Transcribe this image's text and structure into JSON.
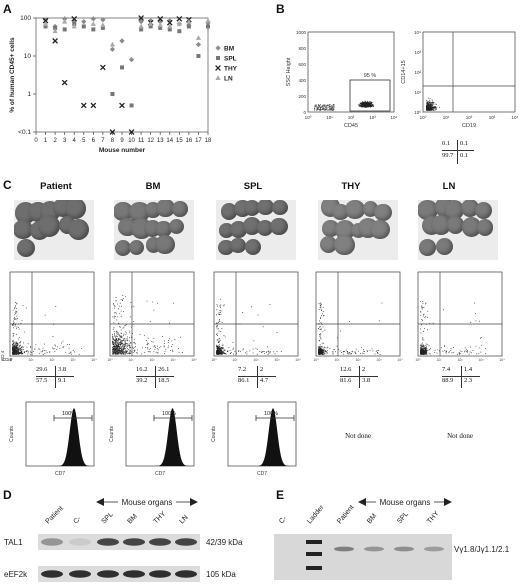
{
  "panels": {
    "A": "A",
    "B": "B",
    "C": "C",
    "D": "D",
    "E": "E"
  },
  "chart_data": {
    "type": "scatter",
    "xlabel": "Mouse number",
    "ylabel": "% of human CD45+ cells",
    "x_ticks": [
      "0",
      "1",
      "2",
      "3",
      "4",
      "5",
      "6",
      "7",
      "8",
      "9",
      "10",
      "11",
      "12",
      "13",
      "14",
      "15",
      "16",
      "17",
      "18"
    ],
    "y_ticks": [
      "100",
      "10",
      "1",
      "<0.1"
    ],
    "log_y": true,
    "series": [
      {
        "name": "BM",
        "color": "#8a8a8a",
        "marker": "diamond",
        "points": [
          [
            1,
            90
          ],
          [
            2,
            60
          ],
          [
            3,
            95
          ],
          [
            4,
            85
          ],
          [
            5,
            80
          ],
          [
            6,
            95
          ],
          [
            7,
            90
          ],
          [
            8,
            15
          ],
          [
            9,
            25
          ],
          [
            10,
            8
          ],
          [
            11,
            80
          ],
          [
            12,
            85
          ],
          [
            13,
            80
          ],
          [
            14,
            85
          ],
          [
            15,
            70
          ],
          [
            16,
            65
          ],
          [
            17,
            20
          ],
          [
            18,
            75
          ]
        ]
      },
      {
        "name": "SPL",
        "color": "#777777",
        "marker": "square",
        "points": [
          [
            1,
            60
          ],
          [
            2,
            55
          ],
          [
            3,
            50
          ],
          [
            4,
            70
          ],
          [
            5,
            60
          ],
          [
            6,
            50
          ],
          [
            7,
            55
          ],
          [
            8,
            1
          ],
          [
            9,
            5
          ],
          [
            10,
            0.5
          ],
          [
            11,
            50
          ],
          [
            12,
            60
          ],
          [
            13,
            55
          ],
          [
            14,
            50
          ],
          [
            15,
            45
          ],
          [
            16,
            60
          ],
          [
            17,
            10
          ],
          [
            18,
            60
          ]
        ]
      },
      {
        "name": "THY",
        "color": "#222222",
        "marker": "x",
        "points": [
          [
            1,
            85
          ],
          [
            2,
            25
          ],
          [
            3,
            2
          ],
          [
            4,
            95
          ],
          [
            5,
            0.5
          ],
          [
            6,
            0.5
          ],
          [
            7,
            5
          ],
          [
            8,
            0.1
          ],
          [
            9,
            0.5
          ],
          [
            10,
            0.1
          ],
          [
            11,
            100
          ],
          [
            12,
            75
          ],
          [
            13,
            95
          ],
          [
            14,
            75
          ],
          [
            15,
            95
          ],
          [
            16,
            90
          ]
        ]
      },
      {
        "name": "LN",
        "color": "#aaaaaa",
        "marker": "triangle",
        "points": [
          [
            1,
            70
          ],
          [
            2,
            45
          ],
          [
            3,
            80
          ],
          [
            4,
            60
          ],
          [
            6,
            70
          ],
          [
            7,
            65
          ],
          [
            8,
            20
          ],
          [
            11,
            60
          ],
          [
            12,
            70
          ],
          [
            13,
            65
          ],
          [
            14,
            60
          ],
          [
            15,
            70
          ],
          [
            16,
            80
          ],
          [
            17,
            30
          ],
          [
            18,
            85
          ]
        ]
      }
    ]
  },
  "panel_b": {
    "left": {
      "ylabel": "SSC Height",
      "xlabel": "CD45",
      "gate_label": "95 %",
      "x_ticks": [
        "10⁰",
        "10¹",
        "10²",
        "10³",
        "10⁴"
      ],
      "y_ticks": [
        "0",
        "200",
        "400",
        "600",
        "800",
        "1000"
      ]
    },
    "right": {
      "ylabel": "CD14+15",
      "xlabel": "CD19",
      "x_ticks": [
        "10⁰",
        "10¹",
        "10²",
        "10³",
        "10⁴"
      ],
      "y_ticks": [
        "10⁰",
        "10¹",
        "10²",
        "10³",
        "10⁴"
      ],
      "quadrants": {
        "ul": "0.1",
        "ur": "0.1",
        "ll": "99.7",
        "lr": "0.1"
      }
    }
  },
  "panel_c": {
    "columns": [
      "Patient",
      "BM",
      "SPL",
      "THY",
      "LN"
    ],
    "dotplot_xlabel": "CD 8",
    "dotplot_ylabel": "CD 4",
    "quadrants": [
      {
        "ul": "29.6",
        "ur": "3.8",
        "ll": "57.5",
        "lr": "9.1"
      },
      {
        "ul": "16.2",
        "ur": "26.1",
        "ll": "39.2",
        "lr": "18.5"
      },
      {
        "ul": "7.2",
        "ur": "2",
        "ll": "86.1",
        "lr": "4.7"
      },
      {
        "ul": "12.6",
        "ur": "2",
        "ll": "81.6",
        "lr": "3.8"
      },
      {
        "ul": "7.4",
        "ur": "1.4",
        "ll": "88.9",
        "lr": "2.3"
      }
    ],
    "histogram": {
      "ylabel": "Counts",
      "xlabel": "CD7",
      "marker": "100%",
      "not_done": "Not done"
    }
  },
  "panel_d": {
    "lanes": [
      "Patient",
      "C-",
      "SPL",
      "BM",
      "THY",
      "LN"
    ],
    "group_label": "Mouse organs",
    "rows": [
      {
        "name": "TAL1",
        "size": "42/39 kDa"
      },
      {
        "name": "eEF2k",
        "size": "105 kDa"
      }
    ]
  },
  "panel_e": {
    "lanes": [
      "C-",
      "Ladder",
      "Patient",
      "BM",
      "SPL",
      "THY"
    ],
    "group_label": "Mouse organs",
    "band_label": "Vγ1.8/Jγ1.1/2.1"
  }
}
